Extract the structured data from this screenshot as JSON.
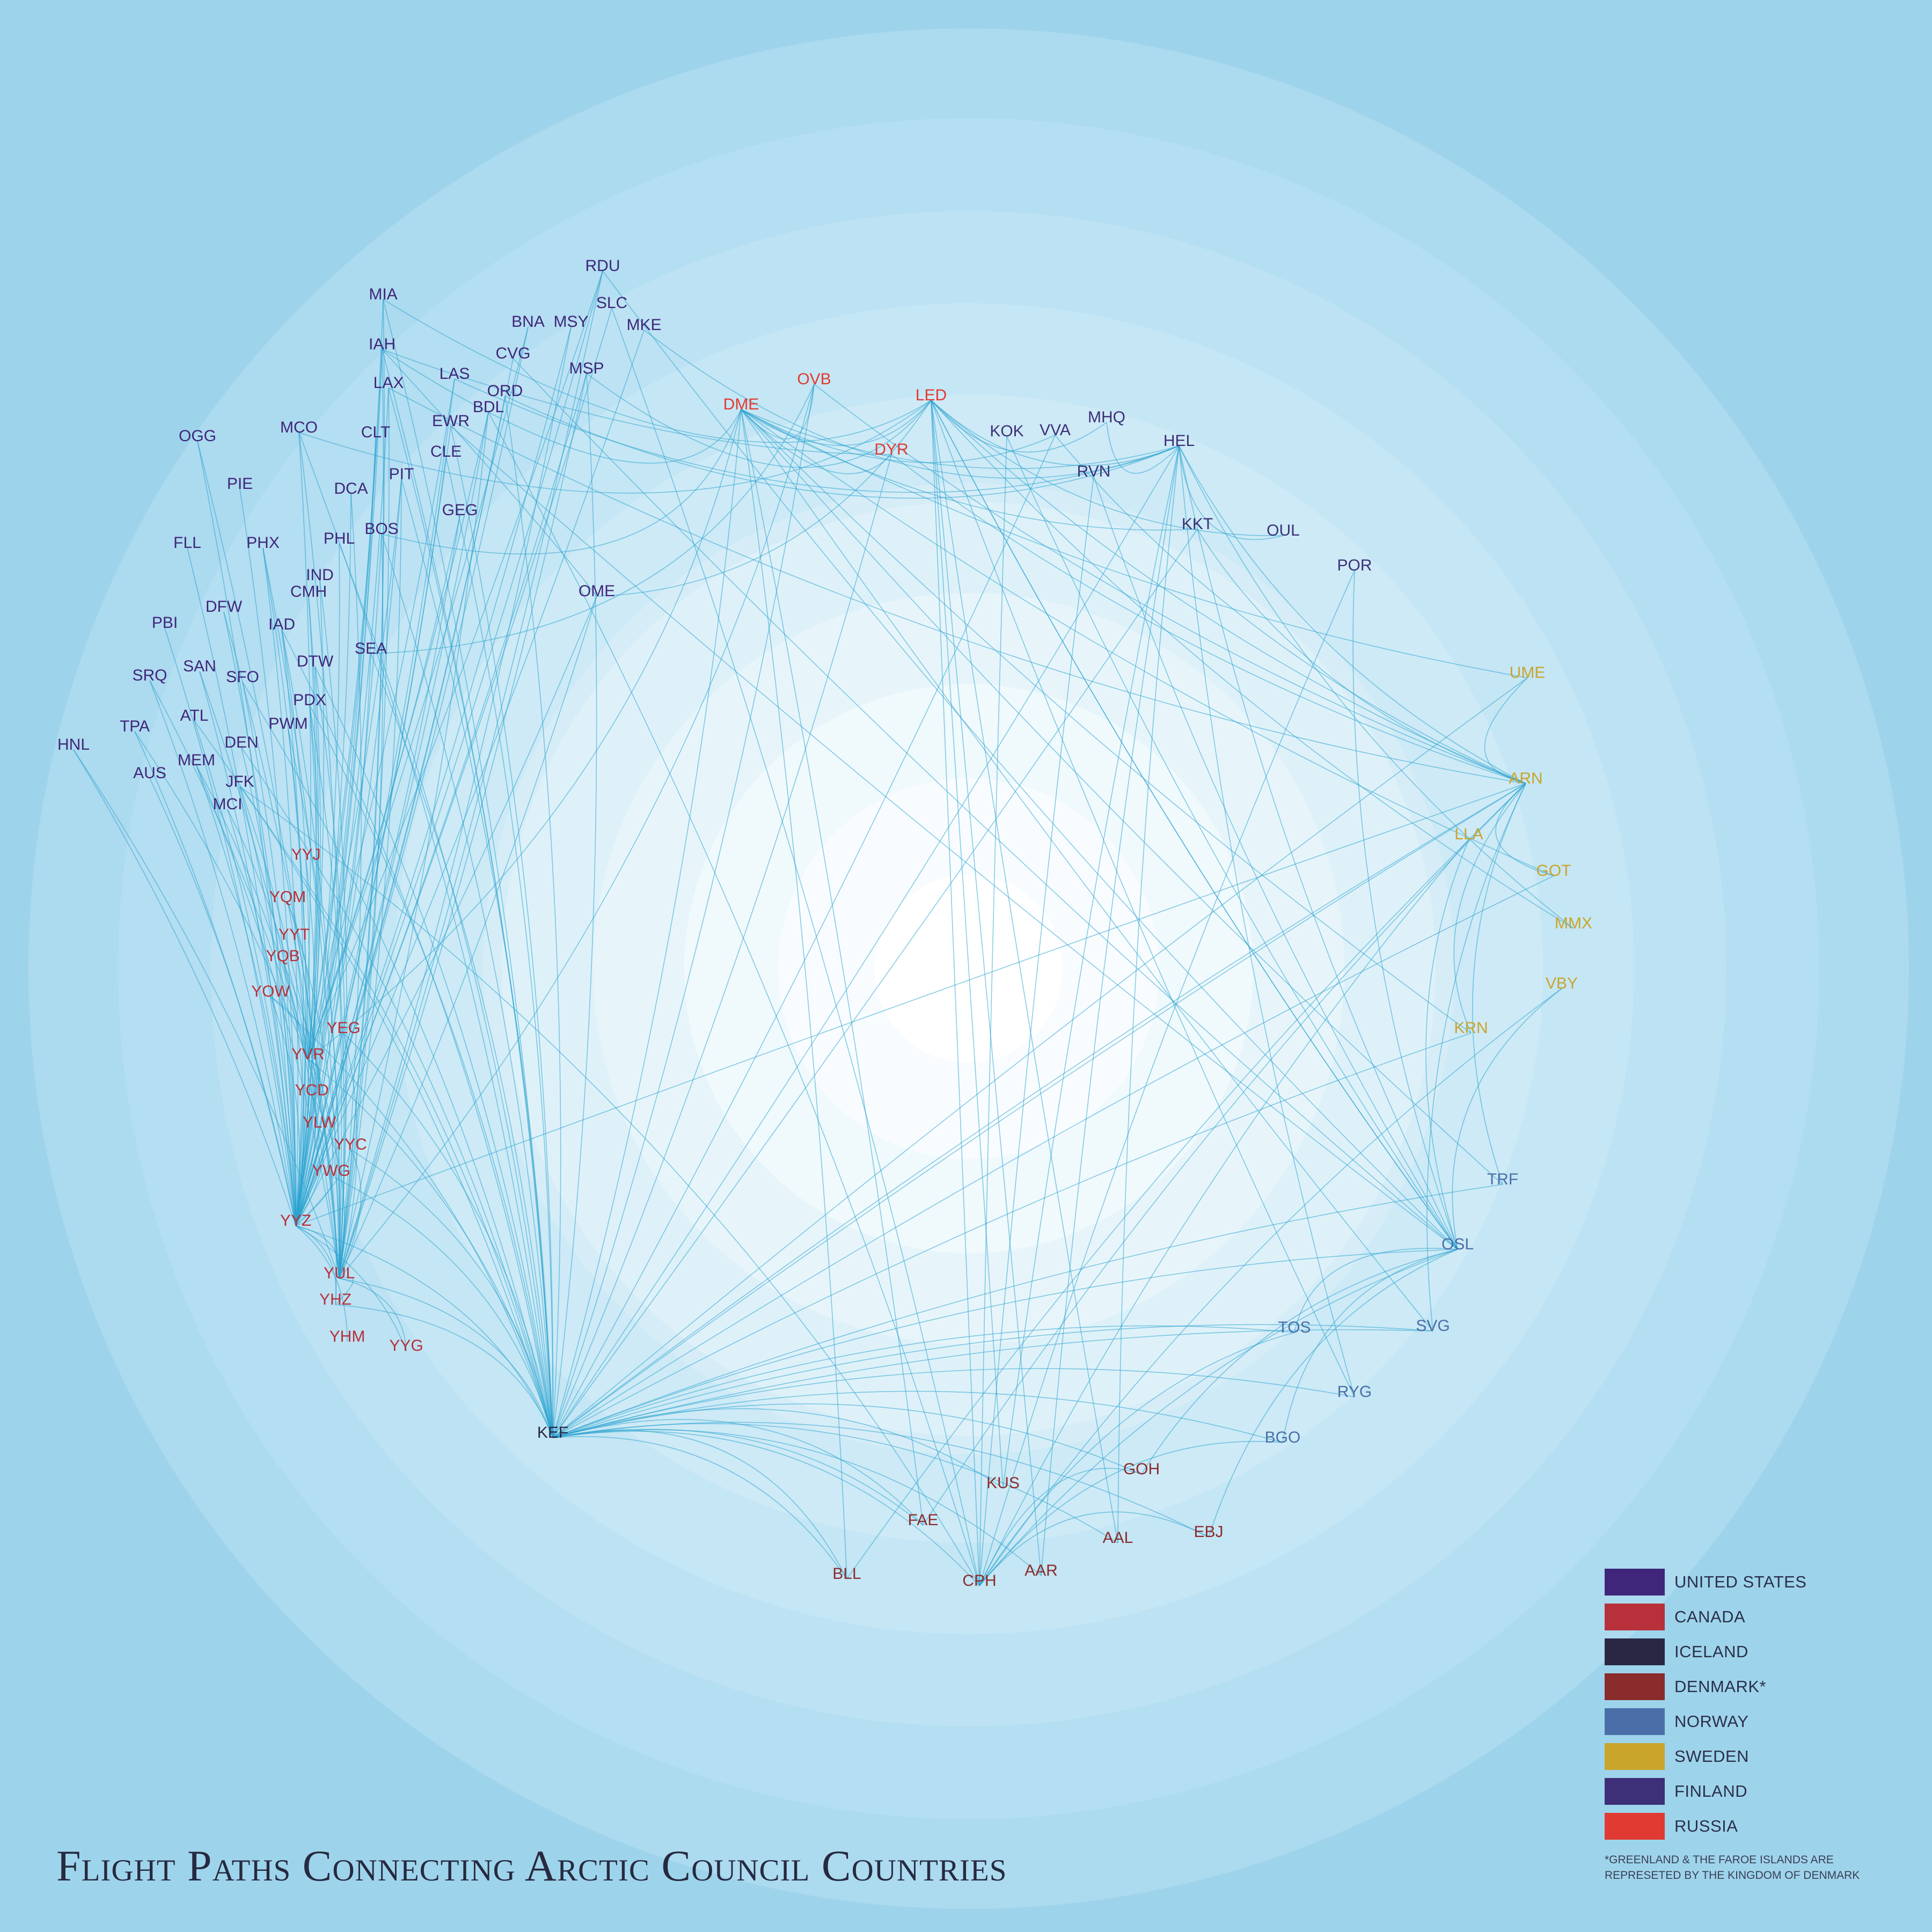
{
  "title": "Flight Paths Connecting Arctic Council Countries",
  "colors": {
    "background": "#9ed4eb",
    "route": "#2aa3cf",
    "rings": [
      "#a4d7ed",
      "#acdaef",
      "#b4def1",
      "#bde2f3",
      "#c5e6f4",
      "#cdeaf6",
      "#d6edf7",
      "#deF1f9",
      "#e7f5fa",
      "#f0f9fc",
      "#f8fcfe",
      "#ffffff"
    ]
  },
  "legend": {
    "items": [
      {
        "label": "UNITED STATES",
        "color": "#3f267a"
      },
      {
        "label": "CANADA",
        "color": "#b8303a"
      },
      {
        "label": "ICELAND",
        "color": "#2a2745"
      },
      {
        "label": "DENMARK*",
        "color": "#8a2c2c"
      },
      {
        "label": "NORWAY",
        "color": "#4a6fa8"
      },
      {
        "label": "SWEDEN",
        "color": "#c9a52c"
      },
      {
        "label": "FINLAND",
        "color": "#3d2f78"
      },
      {
        "label": "RUSSIA",
        "color": "#e13a32"
      }
    ],
    "note_line1": "*GREENLAND & THE FAROE ISLANDS ARE",
    "note_line2": "REPRESETED BY THE KINGDOM OF DENMARK"
  },
  "airports": [
    {
      "code": "RDU",
      "country": "United States"
    },
    {
      "code": "SLC",
      "country": "United States"
    },
    {
      "code": "MIA",
      "country": "United States"
    },
    {
      "code": "BNA",
      "country": "United States"
    },
    {
      "code": "MSY",
      "country": "United States"
    },
    {
      "code": "MKE",
      "country": "United States"
    },
    {
      "code": "IAH",
      "country": "United States"
    },
    {
      "code": "CVG",
      "country": "United States"
    },
    {
      "code": "MSP",
      "country": "United States"
    },
    {
      "code": "LAS",
      "country": "United States"
    },
    {
      "code": "LAX",
      "country": "United States"
    },
    {
      "code": "ORD",
      "country": "United States"
    },
    {
      "code": "BDL",
      "country": "United States"
    },
    {
      "code": "EWR",
      "country": "United States"
    },
    {
      "code": "MCO",
      "country": "United States"
    },
    {
      "code": "CLT",
      "country": "United States"
    },
    {
      "code": "OGG",
      "country": "United States"
    },
    {
      "code": "CLE",
      "country": "United States"
    },
    {
      "code": "PIT",
      "country": "United States"
    },
    {
      "code": "PIE",
      "country": "United States"
    },
    {
      "code": "DCA",
      "country": "United States"
    },
    {
      "code": "GEG",
      "country": "United States"
    },
    {
      "code": "BOS",
      "country": "United States"
    },
    {
      "code": "FLL",
      "country": "United States"
    },
    {
      "code": "PHX",
      "country": "United States"
    },
    {
      "code": "PHL",
      "country": "United States"
    },
    {
      "code": "IND",
      "country": "United States"
    },
    {
      "code": "CMH",
      "country": "United States"
    },
    {
      "code": "DFW",
      "country": "United States"
    },
    {
      "code": "PBI",
      "country": "United States"
    },
    {
      "code": "IAD",
      "country": "United States"
    },
    {
      "code": "SEA",
      "country": "United States"
    },
    {
      "code": "DTW",
      "country": "United States"
    },
    {
      "code": "SRQ",
      "country": "United States"
    },
    {
      "code": "SAN",
      "country": "United States"
    },
    {
      "code": "SFO",
      "country": "United States"
    },
    {
      "code": "PDX",
      "country": "United States"
    },
    {
      "code": "ATL",
      "country": "United States"
    },
    {
      "code": "PWM",
      "country": "United States"
    },
    {
      "code": "TPA",
      "country": "United States"
    },
    {
      "code": "HNL",
      "country": "United States"
    },
    {
      "code": "DEN",
      "country": "United States"
    },
    {
      "code": "MEM",
      "country": "United States"
    },
    {
      "code": "AUS",
      "country": "United States"
    },
    {
      "code": "JFK",
      "country": "United States"
    },
    {
      "code": "MCI",
      "country": "United States"
    },
    {
      "code": "OME",
      "country": "United States"
    },
    {
      "code": "YYJ",
      "country": "Canada"
    },
    {
      "code": "YQM",
      "country": "Canada"
    },
    {
      "code": "YYT",
      "country": "Canada"
    },
    {
      "code": "YQB",
      "country": "Canada"
    },
    {
      "code": "YOW",
      "country": "Canada"
    },
    {
      "code": "YEG",
      "country": "Canada"
    },
    {
      "code": "YVR",
      "country": "Canada"
    },
    {
      "code": "YCD",
      "country": "Canada"
    },
    {
      "code": "YLW",
      "country": "Canada"
    },
    {
      "code": "YYC",
      "country": "Canada"
    },
    {
      "code": "YWG",
      "country": "Canada"
    },
    {
      "code": "YYZ",
      "country": "Canada"
    },
    {
      "code": "YUL",
      "country": "Canada"
    },
    {
      "code": "YHZ",
      "country": "Canada"
    },
    {
      "code": "YHM",
      "country": "Canada"
    },
    {
      "code": "YYG",
      "country": "Canada"
    },
    {
      "code": "KEF",
      "country": "Iceland"
    },
    {
      "code": "KUS",
      "country": "Denmark"
    },
    {
      "code": "GOH",
      "country": "Denmark"
    },
    {
      "code": "FAE",
      "country": "Denmark"
    },
    {
      "code": "AAL",
      "country": "Denmark"
    },
    {
      "code": "EBJ",
      "country": "Denmark"
    },
    {
      "code": "BLL",
      "country": "Denmark"
    },
    {
      "code": "AAR",
      "country": "Denmark"
    },
    {
      "code": "CPH",
      "country": "Denmark"
    },
    {
      "code": "TRF",
      "country": "Norway"
    },
    {
      "code": "OSL",
      "country": "Norway"
    },
    {
      "code": "TOS",
      "country": "Norway"
    },
    {
      "code": "SVG",
      "country": "Norway"
    },
    {
      "code": "RYG",
      "country": "Norway"
    },
    {
      "code": "BGO",
      "country": "Norway"
    },
    {
      "code": "UME",
      "country": "Sweden"
    },
    {
      "code": "ARN",
      "country": "Sweden"
    },
    {
      "code": "LLA",
      "country": "Sweden"
    },
    {
      "code": "GOT",
      "country": "Sweden"
    },
    {
      "code": "MMX",
      "country": "Sweden"
    },
    {
      "code": "VBY",
      "country": "Sweden"
    },
    {
      "code": "KRN",
      "country": "Sweden"
    },
    {
      "code": "MHQ",
      "country": "Finland"
    },
    {
      "code": "KOK",
      "country": "Finland"
    },
    {
      "code": "VVA",
      "country": "Finland"
    },
    {
      "code": "HEL",
      "country": "Finland"
    },
    {
      "code": "RVN",
      "country": "Finland"
    },
    {
      "code": "KKT",
      "country": "Finland"
    },
    {
      "code": "OUL",
      "country": "Finland"
    },
    {
      "code": "POR",
      "country": "Finland"
    },
    {
      "code": "OVB",
      "country": "Russia"
    },
    {
      "code": "DME",
      "country": "Russia"
    },
    {
      "code": "LED",
      "country": "Russia"
    },
    {
      "code": "DYR",
      "country": "Russia"
    }
  ]
}
